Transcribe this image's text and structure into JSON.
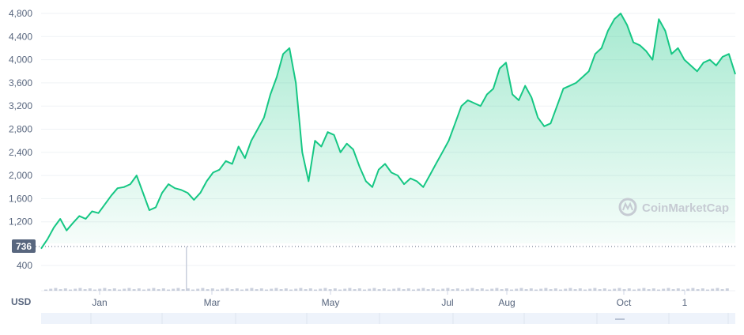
{
  "chart_data": {
    "type": "area",
    "unit_label": "USD",
    "watermark": "CoinMarketCap",
    "current_price_label": "736",
    "y_ticks": [
      "4,800",
      "4,400",
      "4,000",
      "3,600",
      "3,200",
      "2,800",
      "2,400",
      "2,000",
      "1,600",
      "1,200",
      "400"
    ],
    "y_tick_values": [
      4800,
      4400,
      4000,
      3600,
      3200,
      2800,
      2400,
      2000,
      1600,
      1200,
      400
    ],
    "x_ticks": [
      "Jan",
      "Mar",
      "May",
      "Jul",
      "Aug",
      "Oct",
      "1"
    ],
    "ylim": [
      0,
      5000
    ],
    "grid": true,
    "color_line": "#16c784",
    "color_fill": "#16c784",
    "series": [
      {
        "values": [
          736,
          900,
          1100,
          1250,
          1050,
          1180,
          1300,
          1250,
          1380,
          1350,
          1500,
          1650,
          1780,
          1800,
          1850,
          2000,
          1700,
          1400,
          1450,
          1700,
          1850,
          1780,
          1750,
          1700,
          1580,
          1700,
          1900,
          2050,
          2100,
          2250,
          2200,
          2500,
          2300,
          2600,
          2800,
          3000,
          3400,
          3700,
          4100,
          4200,
          3600,
          2400,
          1900,
          2600,
          2500,
          2750,
          2700,
          2400,
          2550,
          2450,
          2150,
          1900,
          1800,
          2100,
          2200,
          2050,
          2000,
          1850,
          1950,
          1900,
          1800,
          2000,
          2200,
          2400,
          2600,
          2900,
          3200,
          3300,
          3250,
          3200,
          3400,
          3500,
          3850,
          3950,
          3400,
          3300,
          3550,
          3350,
          3000,
          2850,
          2900,
          3200,
          3500,
          3550,
          3600,
          3700,
          3800,
          4100,
          4200,
          4500,
          4700,
          4800,
          4600,
          4300,
          4250,
          4150,
          4000,
          4700,
          4500,
          4100,
          4200,
          4000,
          3900,
          3800,
          3950,
          4000,
          3900,
          4050,
          4100,
          3750
        ]
      }
    ]
  }
}
